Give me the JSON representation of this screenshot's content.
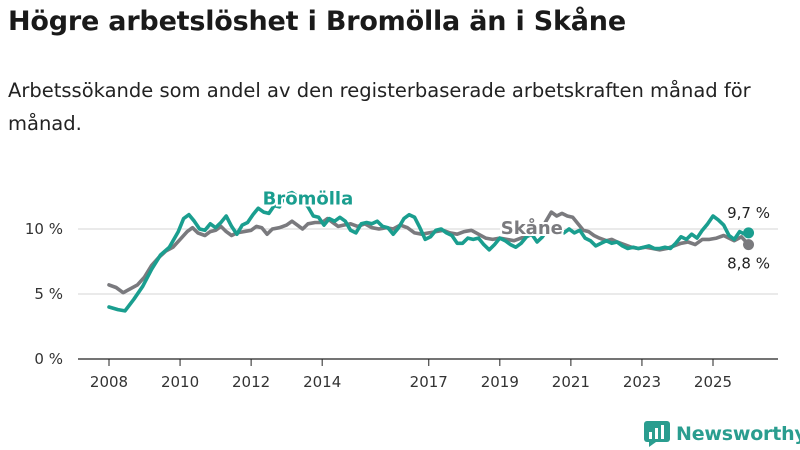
{
  "title": "Högre arbetslöshet i Bromölla än i Skåne",
  "subtitle": "Arbetssökande som andel av den registerbaserade arbetskraften månad för månad.",
  "brand": {
    "name": "Newsworthy"
  },
  "colors": {
    "bromolla": "#1a9e8f",
    "skane": "#7a7a7e",
    "grid": "#d4d4d4",
    "axis": "#222222"
  },
  "chart_data": {
    "type": "line",
    "title": "Högre arbetslöshet i Bromölla än i Skåne",
    "xlabel": "",
    "ylabel": "",
    "x_range": [
      2008.0,
      2026.0
    ],
    "ylim": [
      0,
      13
    ],
    "y_ticks": [
      {
        "value": 0,
        "label": "0 %"
      },
      {
        "value": 5,
        "label": "5 %"
      },
      {
        "value": 10,
        "label": "10 %"
      }
    ],
    "x_ticks": [
      {
        "value": 2008,
        "label": "2008"
      },
      {
        "value": 2010,
        "label": "2010"
      },
      {
        "value": 2012,
        "label": "2012"
      },
      {
        "value": 2014,
        "label": "2014"
      },
      {
        "value": 2017,
        "label": "2017"
      },
      {
        "value": 2019,
        "label": "2019"
      },
      {
        "value": 2021,
        "label": "2021"
      },
      {
        "value": 2023,
        "label": "2023"
      },
      {
        "value": 2025,
        "label": "2025"
      }
    ],
    "series": [
      {
        "name": "Bromölla",
        "color": "#1a9e8f",
        "label_at": {
          "x": 2013.6,
          "y": 11.9
        },
        "end_label": "9,7 %",
        "points": [
          [
            2008.0,
            4.0
          ],
          [
            2008.25,
            3.8
          ],
          [
            2008.45,
            3.7
          ],
          [
            2008.7,
            4.6
          ],
          [
            2008.95,
            5.6
          ],
          [
            2009.2,
            6.9
          ],
          [
            2009.45,
            8.0
          ],
          [
            2009.7,
            8.6
          ],
          [
            2009.95,
            9.8
          ],
          [
            2010.1,
            10.8
          ],
          [
            2010.25,
            11.1
          ],
          [
            2010.4,
            10.6
          ],
          [
            2010.55,
            10.0
          ],
          [
            2010.7,
            9.9
          ],
          [
            2010.85,
            10.4
          ],
          [
            2011.0,
            10.1
          ],
          [
            2011.15,
            10.5
          ],
          [
            2011.3,
            11.0
          ],
          [
            2011.45,
            10.2
          ],
          [
            2011.6,
            9.6
          ],
          [
            2011.75,
            10.3
          ],
          [
            2011.9,
            10.5
          ],
          [
            2012.05,
            11.1
          ],
          [
            2012.2,
            11.6
          ],
          [
            2012.35,
            11.3
          ],
          [
            2012.5,
            11.2
          ],
          [
            2012.65,
            11.8
          ],
          [
            2012.8,
            11.7
          ],
          [
            2012.95,
            12.6
          ],
          [
            2013.15,
            12.8
          ],
          [
            2013.3,
            12.5
          ],
          [
            2013.45,
            12.2
          ],
          [
            2013.6,
            11.7
          ],
          [
            2013.75,
            11.0
          ],
          [
            2013.9,
            10.9
          ],
          [
            2014.05,
            10.3
          ],
          [
            2014.2,
            10.8
          ],
          [
            2014.35,
            10.6
          ],
          [
            2014.5,
            10.9
          ],
          [
            2014.65,
            10.6
          ],
          [
            2014.8,
            9.9
          ],
          [
            2014.95,
            9.7
          ],
          [
            2015.1,
            10.4
          ],
          [
            2015.25,
            10.5
          ],
          [
            2015.4,
            10.4
          ],
          [
            2015.55,
            10.6
          ],
          [
            2015.7,
            10.2
          ],
          [
            2015.85,
            10.1
          ],
          [
            2016.0,
            9.6
          ],
          [
            2016.15,
            10.1
          ],
          [
            2016.3,
            10.8
          ],
          [
            2016.45,
            11.1
          ],
          [
            2016.6,
            10.9
          ],
          [
            2016.75,
            10.1
          ],
          [
            2016.9,
            9.2
          ],
          [
            2017.05,
            9.4
          ],
          [
            2017.2,
            9.9
          ],
          [
            2017.35,
            10.0
          ],
          [
            2017.5,
            9.7
          ],
          [
            2017.65,
            9.5
          ],
          [
            2017.8,
            8.9
          ],
          [
            2017.95,
            8.9
          ],
          [
            2018.1,
            9.3
          ],
          [
            2018.25,
            9.2
          ],
          [
            2018.4,
            9.3
          ],
          [
            2018.55,
            8.8
          ],
          [
            2018.7,
            8.4
          ],
          [
            2018.85,
            8.8
          ],
          [
            2019.0,
            9.3
          ],
          [
            2019.15,
            9.1
          ],
          [
            2019.3,
            8.8
          ],
          [
            2019.45,
            8.6
          ],
          [
            2019.6,
            8.9
          ],
          [
            2019.75,
            9.4
          ],
          [
            2019.9,
            9.6
          ],
          [
            2020.05,
            9.0
          ],
          [
            2020.2,
            9.4
          ],
          [
            2020.35,
            10.0
          ],
          [
            2020.5,
            9.8
          ],
          [
            2020.65,
            10.3
          ],
          [
            2020.8,
            9.7
          ],
          [
            2020.95,
            10.0
          ],
          [
            2021.1,
            9.7
          ],
          [
            2021.25,
            9.9
          ],
          [
            2021.4,
            9.3
          ],
          [
            2021.55,
            9.1
          ],
          [
            2021.7,
            8.7
          ],
          [
            2021.85,
            8.9
          ],
          [
            2022.0,
            9.1
          ],
          [
            2022.15,
            8.9
          ],
          [
            2022.3,
            9.0
          ],
          [
            2022.45,
            8.7
          ],
          [
            2022.6,
            8.5
          ],
          [
            2022.75,
            8.6
          ],
          [
            2022.9,
            8.5
          ],
          [
            2023.05,
            8.6
          ],
          [
            2023.2,
            8.7
          ],
          [
            2023.35,
            8.5
          ],
          [
            2023.5,
            8.5
          ],
          [
            2023.65,
            8.6
          ],
          [
            2023.8,
            8.5
          ],
          [
            2023.95,
            8.9
          ],
          [
            2024.1,
            9.4
          ],
          [
            2024.25,
            9.2
          ],
          [
            2024.4,
            9.6
          ],
          [
            2024.55,
            9.3
          ],
          [
            2024.7,
            9.9
          ],
          [
            2024.85,
            10.4
          ],
          [
            2025.0,
            11.0
          ],
          [
            2025.15,
            10.7
          ],
          [
            2025.3,
            10.3
          ],
          [
            2025.45,
            9.5
          ],
          [
            2025.6,
            9.2
          ],
          [
            2025.75,
            9.8
          ],
          [
            2025.9,
            9.6
          ],
          [
            2026.0,
            9.7
          ]
        ]
      },
      {
        "name": "Skåne",
        "color": "#7a7a7e",
        "label_at": {
          "x": 2019.9,
          "y": 9.6
        },
        "end_label": "8,8 %",
        "points": [
          [
            2008.0,
            5.7
          ],
          [
            2008.2,
            5.5
          ],
          [
            2008.4,
            5.1
          ],
          [
            2008.6,
            5.4
          ],
          [
            2008.8,
            5.7
          ],
          [
            2009.0,
            6.3
          ],
          [
            2009.2,
            7.2
          ],
          [
            2009.4,
            7.8
          ],
          [
            2009.6,
            8.3
          ],
          [
            2009.8,
            8.6
          ],
          [
            2010.0,
            9.2
          ],
          [
            2010.2,
            9.8
          ],
          [
            2010.35,
            10.1
          ],
          [
            2010.5,
            9.7
          ],
          [
            2010.7,
            9.5
          ],
          [
            2010.85,
            9.8
          ],
          [
            2011.0,
            9.9
          ],
          [
            2011.15,
            10.2
          ],
          [
            2011.3,
            9.8
          ],
          [
            2011.45,
            9.5
          ],
          [
            2011.6,
            9.7
          ],
          [
            2011.8,
            9.8
          ],
          [
            2012.0,
            9.9
          ],
          [
            2012.15,
            10.2
          ],
          [
            2012.3,
            10.1
          ],
          [
            2012.45,
            9.6
          ],
          [
            2012.6,
            10.0
          ],
          [
            2012.8,
            10.1
          ],
          [
            2013.0,
            10.3
          ],
          [
            2013.15,
            10.6
          ],
          [
            2013.3,
            10.3
          ],
          [
            2013.45,
            10.0
          ],
          [
            2013.6,
            10.4
          ],
          [
            2013.8,
            10.5
          ],
          [
            2014.0,
            10.5
          ],
          [
            2014.15,
            10.8
          ],
          [
            2014.3,
            10.5
          ],
          [
            2014.45,
            10.2
          ],
          [
            2014.6,
            10.3
          ],
          [
            2014.8,
            10.4
          ],
          [
            2015.0,
            10.2
          ],
          [
            2015.2,
            10.4
          ],
          [
            2015.4,
            10.1
          ],
          [
            2015.6,
            10.0
          ],
          [
            2015.8,
            10.1
          ],
          [
            2016.0,
            10.0
          ],
          [
            2016.2,
            10.3
          ],
          [
            2016.4,
            10.1
          ],
          [
            2016.6,
            9.7
          ],
          [
            2016.8,
            9.6
          ],
          [
            2017.0,
            9.7
          ],
          [
            2017.2,
            9.8
          ],
          [
            2017.4,
            9.9
          ],
          [
            2017.6,
            9.7
          ],
          [
            2017.8,
            9.6
          ],
          [
            2018.0,
            9.8
          ],
          [
            2018.2,
            9.9
          ],
          [
            2018.4,
            9.6
          ],
          [
            2018.6,
            9.3
          ],
          [
            2018.8,
            9.2
          ],
          [
            2019.0,
            9.3
          ],
          [
            2019.2,
            9.2
          ],
          [
            2019.4,
            9.1
          ],
          [
            2019.6,
            9.3
          ],
          [
            2019.8,
            9.5
          ],
          [
            2020.0,
            9.6
          ],
          [
            2020.15,
            9.9
          ],
          [
            2020.3,
            10.6
          ],
          [
            2020.45,
            11.3
          ],
          [
            2020.6,
            11.0
          ],
          [
            2020.75,
            11.2
          ],
          [
            2020.9,
            11.0
          ],
          [
            2021.05,
            10.9
          ],
          [
            2021.2,
            10.4
          ],
          [
            2021.35,
            9.9
          ],
          [
            2021.5,
            9.8
          ],
          [
            2021.65,
            9.5
          ],
          [
            2021.8,
            9.3
          ],
          [
            2022.0,
            9.1
          ],
          [
            2022.15,
            9.2
          ],
          [
            2022.3,
            9.0
          ],
          [
            2022.5,
            8.8
          ],
          [
            2022.7,
            8.6
          ],
          [
            2022.9,
            8.5
          ],
          [
            2023.1,
            8.6
          ],
          [
            2023.3,
            8.5
          ],
          [
            2023.5,
            8.4
          ],
          [
            2023.7,
            8.5
          ],
          [
            2023.9,
            8.7
          ],
          [
            2024.1,
            8.9
          ],
          [
            2024.3,
            9.0
          ],
          [
            2024.5,
            8.8
          ],
          [
            2024.7,
            9.2
          ],
          [
            2024.9,
            9.2
          ],
          [
            2025.1,
            9.3
          ],
          [
            2025.3,
            9.5
          ],
          [
            2025.45,
            9.3
          ],
          [
            2025.6,
            9.1
          ],
          [
            2025.8,
            9.4
          ],
          [
            2026.0,
            8.8
          ]
        ]
      }
    ]
  }
}
